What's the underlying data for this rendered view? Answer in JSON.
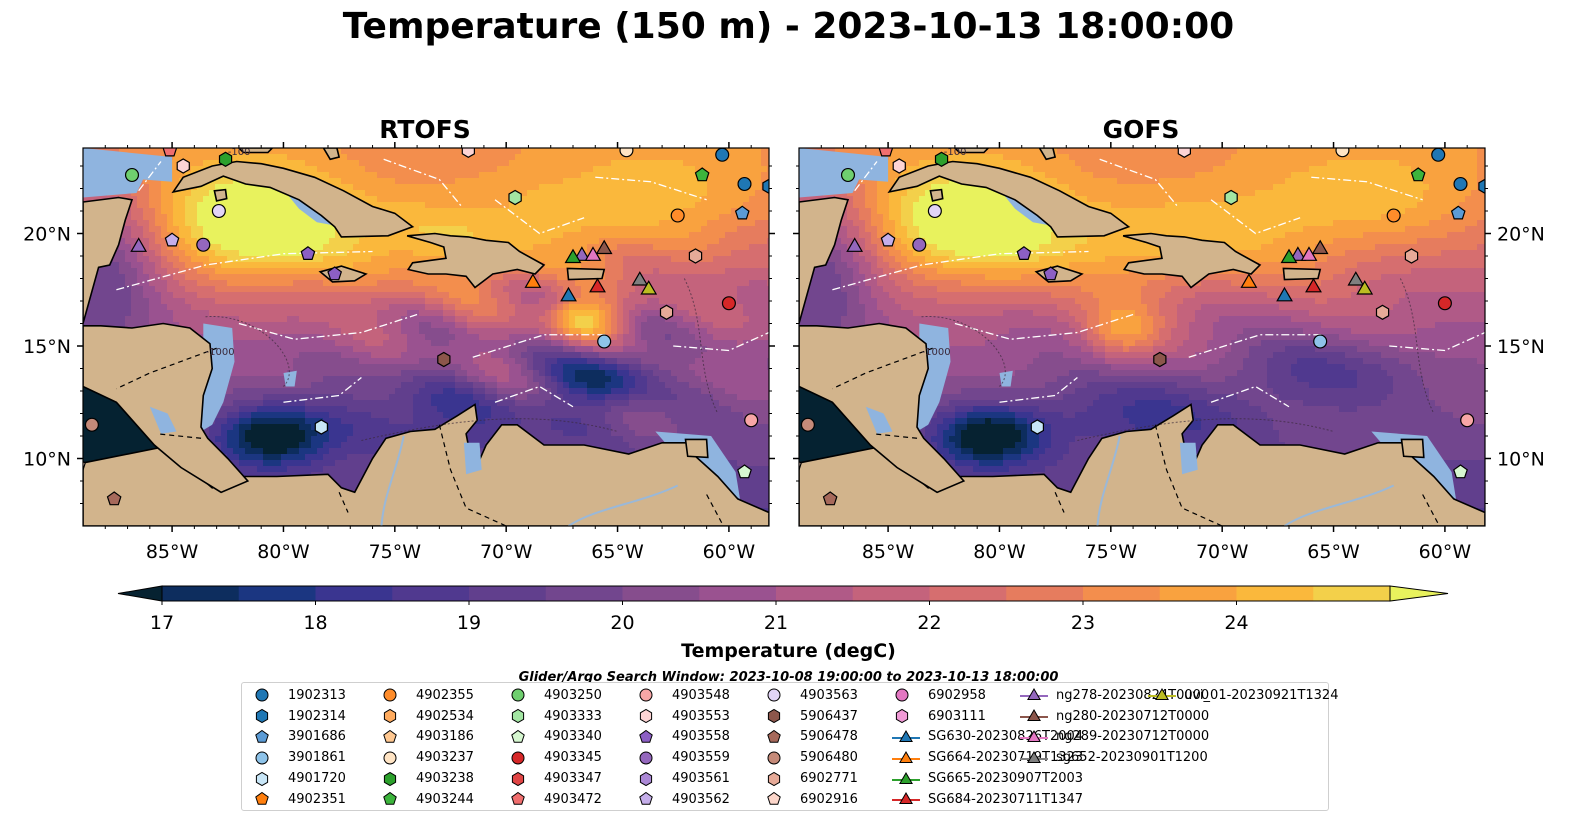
{
  "title": "Temperature (150 m) - 2023-10-13 18:00:00",
  "panels": [
    {
      "title": "RTOFS",
      "variant": 0
    },
    {
      "title": "GOFS",
      "variant": 1
    }
  ],
  "lon_ticks": [
    "85°W",
    "80°W",
    "75°W",
    "70°W",
    "65°W",
    "60°W"
  ],
  "lat_ticks": [
    "20°N",
    "15°N",
    "10°N"
  ],
  "contour_labels": [
    "-100",
    "-1000"
  ],
  "colorbar": {
    "label": "Temperature (degC)",
    "ticks": [
      "17",
      "18",
      "19",
      "20",
      "21",
      "22",
      "23",
      "24"
    ],
    "min": 16.75,
    "max": 24.5,
    "step": 0.5,
    "colors": [
      "#062231",
      "#0d2d5e",
      "#1b3681",
      "#3a3590",
      "#50398f",
      "#613f8d",
      "#72468e",
      "#864d8d",
      "#9a5290",
      "#b05a87",
      "#c4637c",
      "#d66e6f",
      "#e67c5e",
      "#f38e4d",
      "#f9a23f",
      "#fab83c",
      "#f3d04a",
      "#e8f25d"
    ]
  },
  "search_window": "Glider/Argo Search Window: 2023-10-08 19:00:00 to 2023-10-13 18:00:00",
  "legend": [
    {
      "label": "1902313",
      "marker": "circle",
      "color": "#1f77b4"
    },
    {
      "label": "1902314",
      "marker": "hexagon",
      "color": "#1f77b4"
    },
    {
      "label": "3901686",
      "marker": "pentagon",
      "color": "#5b9bd5"
    },
    {
      "label": "3901861",
      "marker": "circle",
      "color": "#8ec3e9"
    },
    {
      "label": "4901720",
      "marker": "hexagon",
      "color": "#c8e6f7"
    },
    {
      "label": "4902351",
      "marker": "pentagon",
      "color": "#ff7f0e"
    },
    {
      "label": "4902355",
      "marker": "circle",
      "color": "#ff8c2a"
    },
    {
      "label": "4902534",
      "marker": "hexagon",
      "color": "#ffab5e"
    },
    {
      "label": "4903186",
      "marker": "pentagon",
      "color": "#ffc891"
    },
    {
      "label": "4903237",
      "marker": "circle",
      "color": "#ffe4c4"
    },
    {
      "label": "4903238",
      "marker": "hexagon",
      "color": "#2ca02c"
    },
    {
      "label": "4903244",
      "marker": "pentagon",
      "color": "#3cb43c"
    },
    {
      "label": "4903250",
      "marker": "circle",
      "color": "#6fcf6f"
    },
    {
      "label": "4903333",
      "marker": "hexagon",
      "color": "#a3e6a3"
    },
    {
      "label": "4903340",
      "marker": "pentagon",
      "color": "#d6f7d0"
    },
    {
      "label": "4903345",
      "marker": "circle",
      "color": "#d62728"
    },
    {
      "label": "4903347",
      "marker": "hexagon",
      "color": "#e04545"
    },
    {
      "label": "4903472",
      "marker": "pentagon",
      "color": "#f06e6e"
    },
    {
      "label": "4903548",
      "marker": "circle",
      "color": "#f8a6a6"
    },
    {
      "label": "4903553",
      "marker": "hexagon",
      "color": "#fdd4d4"
    },
    {
      "label": "4903558",
      "marker": "pentagon",
      "color": "#8c5fc4"
    },
    {
      "label": "4903559",
      "marker": "circle",
      "color": "#9467bd"
    },
    {
      "label": "4903561",
      "marker": "hexagon",
      "color": "#ab88d6"
    },
    {
      "label": "4903562",
      "marker": "pentagon",
      "color": "#c5aeea"
    },
    {
      "label": "4903563",
      "marker": "circle",
      "color": "#e2d4f6"
    },
    {
      "label": "5906437",
      "marker": "hexagon",
      "color": "#8c564b"
    },
    {
      "label": "5906478",
      "marker": "pentagon",
      "color": "#a6695b"
    },
    {
      "label": "5906480",
      "marker": "circle",
      "color": "#c58a79"
    },
    {
      "label": "6902771",
      "marker": "hexagon",
      "color": "#e6aa98"
    },
    {
      "label": "6902916",
      "marker": "pentagon",
      "color": "#fcd6ca"
    },
    {
      "label": "6902958",
      "marker": "circle",
      "color": "#e377c2"
    },
    {
      "label": "6903111",
      "marker": "hexagon",
      "color": "#f09ad6"
    },
    {
      "label": "SG630-20230826T2004",
      "marker": "triangle-line",
      "color": "#1f77b4"
    },
    {
      "label": "SG664-20230719T1323",
      "marker": "triangle-line",
      "color": "#ff7f0e"
    },
    {
      "label": "SG665-20230907T2003",
      "marker": "triangle-line",
      "color": "#2ca02c"
    },
    {
      "label": "SG684-20230711T1347",
      "marker": "triangle-line",
      "color": "#d62728"
    },
    {
      "label": "ng278-20230824T0000",
      "marker": "triangle-line",
      "color": "#9467bd"
    },
    {
      "label": "ng280-20230712T0000",
      "marker": "triangle-line",
      "color": "#8c564b"
    },
    {
      "label": "ng289-20230712T0000",
      "marker": "triangle-line",
      "color": "#e377c2"
    },
    {
      "label": "sg652-20230901T1200",
      "marker": "triangle-line",
      "color": "#7f7f7f"
    },
    {
      "label": "uvi_01-20230921T1324",
      "marker": "triangle-line",
      "color": "#bcbd22"
    }
  ],
  "observations": [
    {
      "id": "1902313",
      "lon": -59.3,
      "lat": 22.2
    },
    {
      "id": "1902313",
      "lon": -60.3,
      "lat": 23.5
    },
    {
      "id": "1902314",
      "lon": -58.2,
      "lat": 22.1
    },
    {
      "id": "3901686",
      "lon": -59.4,
      "lat": 20.9
    },
    {
      "id": "3901861",
      "lon": -65.6,
      "lat": 15.2
    },
    {
      "id": "4901720",
      "lon": -78.3,
      "lat": 11.4
    },
    {
      "id": "4902355",
      "lon": -62.3,
      "lat": 20.8
    },
    {
      "id": "4903237",
      "lon": -64.6,
      "lat": 23.7
    },
    {
      "id": "4903238",
      "lon": -82.6,
      "lat": 23.3
    },
    {
      "id": "4903244",
      "lon": -61.2,
      "lat": 22.6
    },
    {
      "id": "4903250",
      "lon": -86.8,
      "lat": 22.6
    },
    {
      "id": "4903333",
      "lon": -69.6,
      "lat": 21.6
    },
    {
      "id": "4903340",
      "lon": -59.3,
      "lat": 9.4
    },
    {
      "id": "4903472",
      "lon": -85.1,
      "lat": 23.7
    },
    {
      "id": "4903548",
      "lon": -59.0,
      "lat": 11.7
    },
    {
      "id": "4903553",
      "lon": -84.5,
      "lat": 23.0
    },
    {
      "id": "4903553",
      "lon": -71.7,
      "lat": 23.7
    },
    {
      "id": "4903558",
      "lon": -77.7,
      "lat": 18.2
    },
    {
      "id": "4903558",
      "lon": -78.9,
      "lat": 19.1
    },
    {
      "id": "4903559",
      "lon": -83.6,
      "lat": 19.5
    },
    {
      "id": "4903562",
      "lon": -85.0,
      "lat": 19.7
    },
    {
      "id": "4903563",
      "lon": -82.9,
      "lat": 21.0
    },
    {
      "id": "5906437",
      "lon": -72.8,
      "lat": 14.4
    },
    {
      "id": "5906478",
      "lon": -87.6,
      "lat": 8.2
    },
    {
      "id": "5906480",
      "lon": -88.6,
      "lat": 11.5
    },
    {
      "id": "6902771",
      "lon": -62.8,
      "lat": 16.5
    },
    {
      "id": "6902771",
      "lon": -61.5,
      "lat": 19.0
    },
    {
      "id": "6902916",
      "lon": -89.2,
      "lat": 9.7
    },
    {
      "id": "4903345",
      "lon": -60.0,
      "lat": 16.9
    }
  ],
  "gliders": [
    {
      "id": "ng278-20230824T0000",
      "lon": -66.6,
      "lat": 19.0
    },
    {
      "id": "ng280-20230712T0000",
      "lon": -65.6,
      "lat": 19.3
    },
    {
      "id": "ng289-20230712T0000",
      "lon": -66.1,
      "lat": 19.0
    },
    {
      "id": "SG665-20230907T2003",
      "lon": -67.0,
      "lat": 18.9
    },
    {
      "id": "sg652-20230901T1200",
      "lon": -64.0,
      "lat": 17.9
    },
    {
      "id": "SG684-20230711T1347",
      "lon": -65.9,
      "lat": 17.6
    },
    {
      "id": "SG630-20230826T2004",
      "lon": -67.2,
      "lat": 17.2
    },
    {
      "id": "SG664-20230719T1323",
      "lon": -68.8,
      "lat": 17.8
    },
    {
      "id": "uvi_01-20230921T1324",
      "lon": -63.6,
      "lat": 17.5
    },
    {
      "id": "ng278-20230824T0000",
      "lon": -86.5,
      "lat": 19.4
    }
  ]
}
